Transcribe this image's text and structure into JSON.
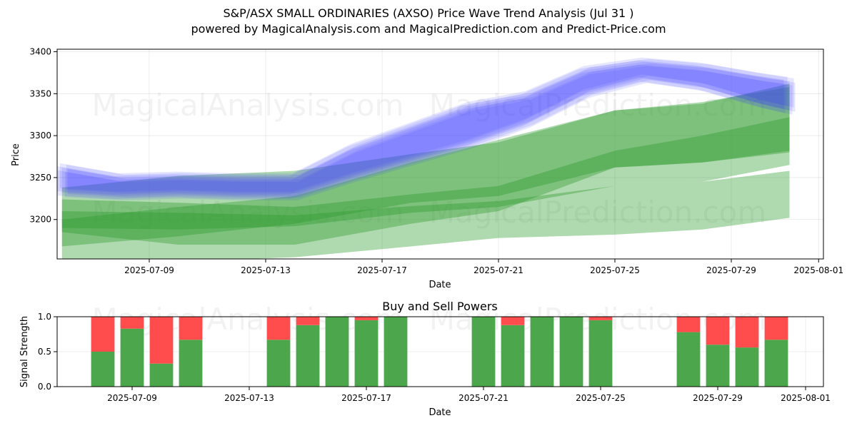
{
  "figure": {
    "title_line1": "S&P/ASX SMALL ORDINARIES (AXSO) Price Wave Trend Analysis (Jul 31 )",
    "title_line2": "powered by MagicalAnalysis.com and MagicalPrediction.com and Predict-Price.com",
    "watermarks": [
      "MagicalAnalysis.com",
      "MagicalPrediction.com"
    ]
  },
  "chart_data": [
    {
      "type": "area",
      "xlabel": "Date",
      "ylabel": "Price",
      "ylim": [
        3153,
        3403
      ],
      "xlim_dates": [
        "2025-07-05",
        "2025-08-01"
      ],
      "xticks": [
        "2025-07-09",
        "2025-07-13",
        "2025-07-17",
        "2025-07-21",
        "2025-07-25",
        "2025-07-29",
        "2025-08-01"
      ],
      "yticks": [
        3200,
        3250,
        3300,
        3350,
        3400
      ],
      "grid": true,
      "colors": {
        "price_wave": "#3b3bff",
        "trend_band": "#2e9a2e"
      },
      "price_wave_band": {
        "x": [
          "2025-07-06",
          "2025-07-08",
          "2025-07-10",
          "2025-07-12",
          "2025-07-14",
          "2025-07-16",
          "2025-07-18",
          "2025-07-20",
          "2025-07-22",
          "2025-07-24",
          "2025-07-26",
          "2025-07-28",
          "2025-07-30",
          "2025-07-31"
        ],
        "upper": [
          3262,
          3250,
          3252,
          3250,
          3250,
          3285,
          3310,
          3335,
          3348,
          3378,
          3388,
          3382,
          3370,
          3365
        ],
        "lower": [
          3232,
          3228,
          3230,
          3228,
          3228,
          3250,
          3270,
          3290,
          3315,
          3350,
          3368,
          3358,
          3338,
          3330
        ]
      },
      "trend_bands": [
        {
          "x": [
            "2025-07-06",
            "2025-07-10",
            "2025-07-14",
            "2025-07-18",
            "2025-07-21",
            "2025-07-25",
            "2025-07-28",
            "2025-07-31"
          ],
          "upper": [
            3200,
            3215,
            3228,
            3268,
            3295,
            3330,
            3338,
            3362
          ],
          "lower": [
            3168,
            3180,
            3195,
            3220,
            3228,
            3262,
            3268,
            3282
          ]
        },
        {
          "x": [
            "2025-07-06",
            "2025-07-10",
            "2025-07-14",
            "2025-07-18",
            "2025-07-21",
            "2025-07-25",
            "2025-07-28",
            "2025-07-31"
          ],
          "upper": [
            3224,
            3220,
            3215,
            3230,
            3240,
            3282,
            3300,
            3322
          ],
          "lower": [
            3190,
            3188,
            3192,
            3208,
            3215,
            3240,
            3245,
            3265
          ]
        },
        {
          "x": [
            "2025-07-06",
            "2025-07-10",
            "2025-07-14",
            "2025-07-18",
            "2025-07-21",
            "2025-07-25",
            "2025-07-28",
            "2025-07-31"
          ],
          "upper": [
            3210,
            3208,
            3205,
            3216,
            3222,
            3240,
            3245,
            3258
          ],
          "lower": [
            3145,
            3150,
            3155,
            3168,
            3178,
            3182,
            3188,
            3202
          ]
        },
        {
          "x": [
            "2025-07-06",
            "2025-07-10",
            "2025-07-14",
            "2025-07-18",
            "2025-07-21",
            "2025-07-25",
            "2025-07-28",
            "2025-07-31"
          ],
          "upper": [
            3238,
            3252,
            3258,
            3278,
            3292,
            3330,
            3340,
            3358
          ],
          "lower": [
            3185,
            3170,
            3170,
            3195,
            3210,
            3262,
            3268,
            3280
          ]
        }
      ]
    },
    {
      "type": "bar",
      "title": "Buy and Sell Powers",
      "xlabel": "Date",
      "ylabel": "Signal Strength",
      "ylim": [
        0,
        1.0
      ],
      "yticks": [
        "0.0",
        "0.5",
        "1.0"
      ],
      "xticks": [
        "2025-07-09",
        "2025-07-13",
        "2025-07-17",
        "2025-07-21",
        "2025-07-25",
        "2025-07-29",
        "2025-08-01"
      ],
      "colors": {
        "buy": "#4ca64c",
        "sell": "#ff4d4d"
      },
      "dates": [
        "2025-07-08",
        "2025-07-09",
        "2025-07-10",
        "2025-07-11",
        "2025-07-14",
        "2025-07-15",
        "2025-07-16",
        "2025-07-17",
        "2025-07-18",
        "2025-07-21",
        "2025-07-22",
        "2025-07-23",
        "2025-07-24",
        "2025-07-25",
        "2025-07-28",
        "2025-07-29",
        "2025-07-30",
        "2025-07-31"
      ],
      "series": [
        {
          "name": "buy",
          "values": [
            0.5,
            0.83,
            0.33,
            0.67,
            0.67,
            0.88,
            1.0,
            0.95,
            1.0,
            1.0,
            0.88,
            1.0,
            1.0,
            0.95,
            0.78,
            0.6,
            0.56,
            0.67
          ]
        },
        {
          "name": "sell",
          "values": [
            0.5,
            0.17,
            0.67,
            0.33,
            0.33,
            0.12,
            0.0,
            0.05,
            0.0,
            0.0,
            0.12,
            0.0,
            0.0,
            0.05,
            0.22,
            0.4,
            0.44,
            0.33
          ]
        }
      ]
    }
  ]
}
